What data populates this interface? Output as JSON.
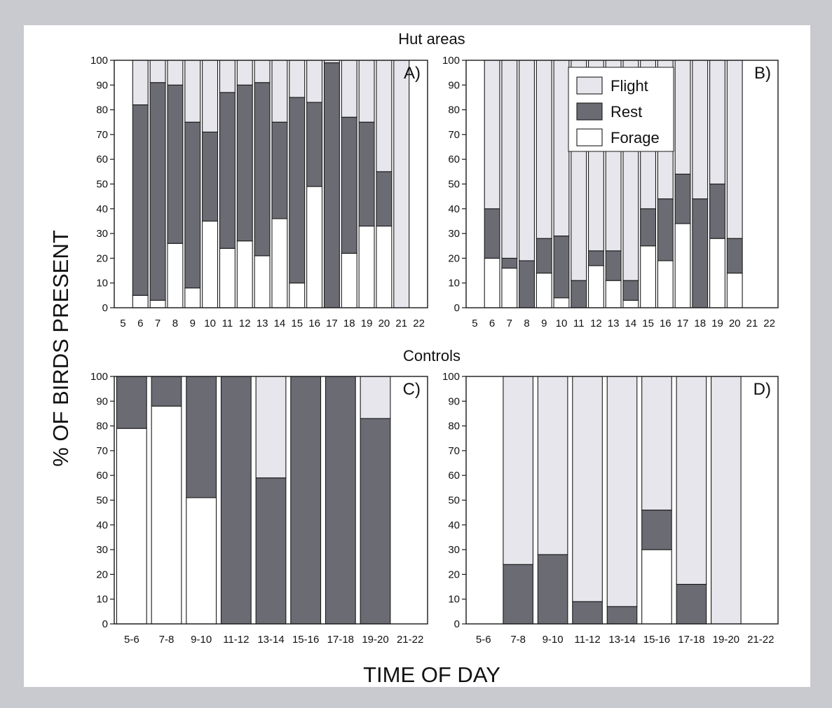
{
  "figure": {
    "ylabel": "% OF BIRDS PRESENT",
    "xlabel": "TIME OF DAY",
    "group_titles": [
      "Hut areas",
      "Controls"
    ]
  },
  "colors": {
    "flight": "#e6e6ec",
    "rest": "#6b6b74",
    "forage": "#ffffff",
    "stroke": "#1a1a1a"
  },
  "chart_data": [
    {
      "type": "bar",
      "stacked": true,
      "panel_label": "A)",
      "group": "Hut areas",
      "categories": [
        "5",
        "6",
        "7",
        "8",
        "9",
        "10",
        "11",
        "12",
        "13",
        "14",
        "15",
        "16",
        "17",
        "18",
        "19",
        "20",
        "21",
        "22"
      ],
      "series": [
        {
          "name": "Forage",
          "values": [
            null,
            5,
            3,
            26,
            8,
            35,
            24,
            27,
            21,
            36,
            10,
            49,
            0,
            22,
            33,
            33,
            null,
            null
          ]
        },
        {
          "name": "Rest",
          "values": [
            null,
            77,
            88,
            64,
            67,
            36,
            63,
            63,
            70,
            39,
            75,
            34,
            99,
            55,
            42,
            22,
            null,
            null
          ]
        },
        {
          "name": "Flight",
          "values": [
            null,
            18,
            9,
            10,
            25,
            29,
            13,
            10,
            9,
            25,
            15,
            17,
            1,
            23,
            25,
            45,
            100,
            null
          ]
        }
      ],
      "ylim": [
        0,
        100
      ],
      "yticks": [
        0,
        10,
        20,
        30,
        40,
        50,
        60,
        70,
        80,
        90,
        100
      ],
      "legend": "none"
    },
    {
      "type": "bar",
      "stacked": true,
      "panel_label": "B)",
      "group": "Hut areas",
      "categories": [
        "5",
        "6",
        "7",
        "8",
        "9",
        "10",
        "11",
        "12",
        "13",
        "14",
        "15",
        "16",
        "17",
        "18",
        "19",
        "20",
        "21",
        "22"
      ],
      "series": [
        {
          "name": "Forage",
          "values": [
            null,
            20,
            16,
            0,
            14,
            4,
            0,
            17,
            11,
            3,
            25,
            19,
            34,
            0,
            28,
            14,
            null,
            null
          ]
        },
        {
          "name": "Rest",
          "values": [
            null,
            20,
            4,
            19,
            14,
            25,
            11,
            6,
            12,
            8,
            15,
            25,
            20,
            44,
            22,
            14,
            null,
            null
          ]
        },
        {
          "name": "Flight",
          "values": [
            null,
            60,
            80,
            81,
            72,
            71,
            89,
            77,
            77,
            89,
            60,
            56,
            46,
            56,
            50,
            72,
            null,
            null
          ]
        }
      ],
      "ylim": [
        0,
        100
      ],
      "yticks": [
        0,
        10,
        20,
        30,
        40,
        50,
        60,
        70,
        80,
        90,
        100
      ],
      "legend": "top-right"
    },
    {
      "type": "bar",
      "stacked": true,
      "panel_label": "C)",
      "group": "Controls",
      "categories": [
        "5-6",
        "7-8",
        "9-10",
        "11-12",
        "13-14",
        "15-16",
        "17-18",
        "19-20",
        "21-22"
      ],
      "series": [
        {
          "name": "Forage",
          "values": [
            79,
            88,
            51,
            0,
            0,
            0,
            0,
            0,
            null
          ]
        },
        {
          "name": "Rest",
          "values": [
            21,
            12,
            49,
            100,
            59,
            100,
            100,
            83,
            null
          ]
        },
        {
          "name": "Flight",
          "values": [
            0,
            0,
            0,
            0,
            41,
            0,
            0,
            17,
            null
          ]
        }
      ],
      "ylim": [
        0,
        100
      ],
      "yticks": [
        0,
        10,
        20,
        30,
        40,
        50,
        60,
        70,
        80,
        90,
        100
      ],
      "legend": "none"
    },
    {
      "type": "bar",
      "stacked": true,
      "panel_label": "D)",
      "group": "Controls",
      "categories": [
        "5-6",
        "7-8",
        "9-10",
        "11-12",
        "13-14",
        "15-16",
        "17-18",
        "19-20",
        "21-22"
      ],
      "series": [
        {
          "name": "Forage",
          "values": [
            null,
            0,
            0,
            0,
            0,
            30,
            0,
            0,
            null
          ]
        },
        {
          "name": "Rest",
          "values": [
            null,
            24,
            28,
            9,
            7,
            16,
            16,
            0,
            null
          ]
        },
        {
          "name": "Flight",
          "values": [
            null,
            76,
            72,
            91,
            93,
            54,
            84,
            100,
            null
          ]
        }
      ],
      "ylim": [
        0,
        100
      ],
      "yticks": [
        0,
        10,
        20,
        30,
        40,
        50,
        60,
        70,
        80,
        90,
        100
      ],
      "legend": "none"
    }
  ],
  "legend": {
    "items": [
      {
        "name": "Flight",
        "color_key": "flight"
      },
      {
        "name": "Rest",
        "color_key": "rest"
      },
      {
        "name": "Forage",
        "color_key": "forage"
      }
    ]
  }
}
